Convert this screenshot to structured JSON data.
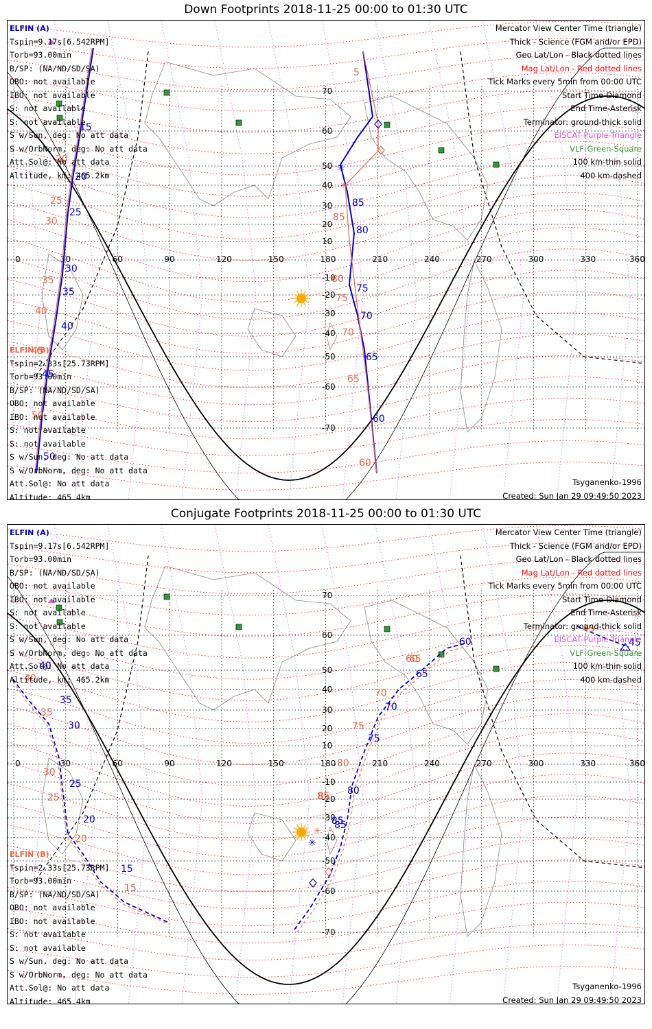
{
  "colors": {
    "elfin_a": "#0000cc",
    "elfin_b": "#ee6644",
    "mag_grid": "#ff0000",
    "geo_grid": "#000000",
    "eiscat": "#dd55dd",
    "vlf": "#339933",
    "sun": "#ffaa00"
  },
  "longitude_ticks": [
    "0",
    "30",
    "60",
    "90",
    "120",
    "150",
    "180",
    "210",
    "240",
    "270",
    "300",
    "330",
    "360"
  ],
  "panels": [
    {
      "title": "Down Footprints 2018-11-25 00:00 to 01:30 UTC",
      "elfin_a": {
        "header": "ELFIN (A)",
        "lines": [
          "Tspin=9.17s[6.542RPM]",
          "Torb=93.00min",
          "B/SP: (NA/ND/SD/SA)",
          "OBO: not available",
          "IBO: not available",
          "S: not available",
          "S: not available",
          "S w/Sun, deg: No att data",
          "S w/OrbNorm, deg: No att data",
          "Att.Sol@: No att data",
          "Altitude, km: 465.2km"
        ]
      },
      "elfin_b": {
        "header": "ELFIN (B)",
        "lines": [
          "Tspin=2.33s[25.73RPM]",
          "Torb=93.00min",
          "B/SP: (NA/ND/SD/SA)",
          "OBO: not available",
          "IBO: not available",
          "S: not available",
          "S: not available",
          "S w/Sun, deg: No att data",
          "S w/OrbNorm, deg: No att data",
          "Att.Sol@: No att data",
          "Altitude: 465.4km"
        ]
      },
      "legend": [
        {
          "text": "Mercator View Center Time (triangle)",
          "color": "#000000"
        },
        {
          "text": "Thick - Science (FGM and/or EPD)",
          "color": "#000000"
        },
        {
          "text": "Geo Lat/Lon - Black dotted lines",
          "color": "#000000"
        },
        {
          "text": "Mag Lat/Lon - Red dotted lines",
          "color": "#ff0000"
        },
        {
          "text": "Tick Marks every 5min from 00:00 UTC",
          "color": "#000000"
        },
        {
          "text": "Start Time-Diamond",
          "color": "#000000"
        },
        {
          "text": "End Time-Asterisk",
          "color": "#000000"
        },
        {
          "text": "Terminator: ground-thick solid",
          "color": "#000000"
        },
        {
          "text": "EISCAT-Purple-Triangle",
          "color": "#dd55dd"
        },
        {
          "text": "VLF-Green-Square",
          "color": "#339933"
        },
        {
          "text": "100 km-thin solid",
          "color": "#000000"
        },
        {
          "text": "400 km-dashed",
          "color": "#000000"
        }
      ],
      "lat_labels": [
        "70",
        "60",
        "50",
        "40",
        "30",
        "20",
        "10",
        "-10",
        "-20",
        "-30",
        "-40",
        "-50",
        "-60",
        "-70"
      ],
      "footer_left": "Tsyganenko-1996",
      "footer_right": "Created: Sun Jan 29 09:49:50 2023",
      "a_ticks": [
        "15",
        "20",
        "25",
        "30",
        "35",
        "40",
        "45",
        "50",
        "85",
        "80",
        "75",
        "70",
        "65",
        "60"
      ],
      "b_ticks": [
        "20",
        "25",
        "30",
        "35",
        "40",
        "45",
        "50",
        "5",
        "85",
        "80",
        "75",
        "70",
        "65",
        "60"
      ]
    },
    {
      "title": "Conjugate Footprints 2018-11-25 00:00 to 01:30 UTC",
      "elfin_a": {
        "header": "ELFIN (A)",
        "lines": [
          "Tspin=9.17s[6.542RPM]",
          "Torb=93.00min",
          "B/SP: (NA/ND/SD/SA)",
          "OBO: not available",
          "IBO: not available",
          "S: not available",
          "S: not available",
          "S w/Sun, deg: No att data",
          "S w/OrbNorm, deg: No att data",
          "Att.Sol@: No att data",
          "Altitude, km: 465.2km"
        ]
      },
      "elfin_b": {
        "header": "ELFIN (B)",
        "lines": [
          "Tspin=2.33s[25.73RPM]",
          "Torb=93.00min",
          "B/SP: (NA/ND/SD/SA)",
          "OBO: not available",
          "IBO: not available",
          "S: not available",
          "S: not available",
          "S w/Sun, deg: No att data",
          "S w/OrbNorm, deg: No att data",
          "Att.Sol@: No att data",
          "Altitude: 465.4km"
        ]
      },
      "legend": [
        {
          "text": "Mercator View Center Time (triangle)",
          "color": "#000000"
        },
        {
          "text": "Thick - Science (FGM and/or EPD)",
          "color": "#000000"
        },
        {
          "text": "Geo Lat/Lon - Black dotted lines",
          "color": "#000000"
        },
        {
          "text": "Mag Lat/Lon - Red dotted lines",
          "color": "#ff0000"
        },
        {
          "text": "Tick Marks every 5min from 00:00 UTC",
          "color": "#000000"
        },
        {
          "text": "Start Time-Diamond",
          "color": "#000000"
        },
        {
          "text": "End Time-Asterisk",
          "color": "#000000"
        },
        {
          "text": "Terminator: ground-thick solid",
          "color": "#000000"
        },
        {
          "text": "EISCAT-Purple-Triangle",
          "color": "#dd55dd"
        },
        {
          "text": "VLF-Green-Square",
          "color": "#339933"
        },
        {
          "text": "100 km-thin solid",
          "color": "#000000"
        },
        {
          "text": "400 km-dashed",
          "color": "#000000"
        }
      ],
      "lat_labels": [
        "70",
        "60",
        "50",
        "40",
        "30",
        "20",
        "10",
        "-10",
        "-20",
        "-30",
        "-40",
        "-50",
        "-60",
        "-70"
      ],
      "footer_left": "Tsyganenko-1996",
      "footer_right": "Created: Sun Jan 29 09:49:50 2023",
      "a_ticks": [
        "40",
        "35",
        "30",
        "25",
        "20",
        "15",
        "45",
        "60",
        "85",
        "80",
        "75",
        "70",
        "65",
        "85"
      ],
      "b_ticks": [
        "40",
        "35",
        "30",
        "25",
        "20",
        "15",
        "45",
        "60",
        "85",
        "80",
        "75",
        "70",
        "65",
        "85"
      ]
    }
  ]
}
